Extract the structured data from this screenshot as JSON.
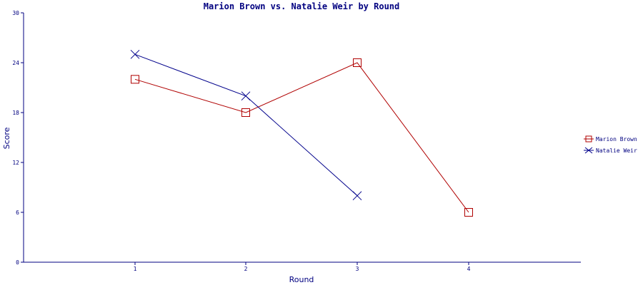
{
  "chart_data": {
    "type": "line",
    "title": "Marion Brown vs. Natalie Weir by Round",
    "xlabel": "Round",
    "ylabel": "Score",
    "categories": [
      "1",
      "2",
      "3",
      "4"
    ],
    "ylim": [
      0,
      30
    ],
    "yticks": [
      0,
      6,
      12,
      18,
      24,
      30
    ],
    "grid": false,
    "legend_position": "right",
    "series": [
      {
        "name": "Marion Brown",
        "color": "#b00000",
        "marker": "square",
        "values": [
          22,
          18,
          24,
          6
        ]
      },
      {
        "name": "Natalie Weir",
        "color": "#00008b",
        "marker": "x",
        "values": [
          25,
          20,
          8,
          null
        ]
      }
    ]
  }
}
